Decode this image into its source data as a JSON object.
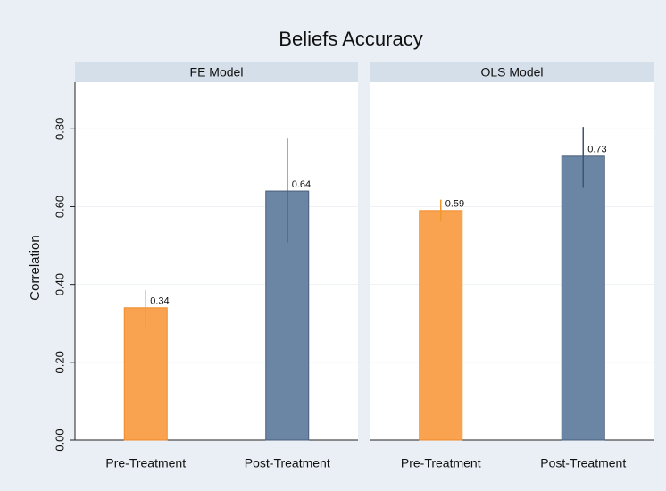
{
  "title": "Beliefs Accuracy",
  "ylabel": "Correlation",
  "chart_data": [
    {
      "type": "bar",
      "title": "FE Model",
      "categories": [
        "Pre-Treatment",
        "Post-Treatment"
      ],
      "values": [
        0.34,
        0.64
      ],
      "error_low": [
        0.287,
        0.508
      ],
      "error_high": [
        0.386,
        0.775
      ],
      "colors": [
        "#f9a350",
        "#6a86a4"
      ],
      "error_colors": [
        "#f09a2c",
        "#3c5573"
      ],
      "ylim": [
        0,
        0.92
      ],
      "yticks": [
        {
          "value": 0,
          "label": "0.00"
        },
        {
          "value": 0.2,
          "label": "0.20"
        },
        {
          "value": 0.4,
          "label": "0.40"
        },
        {
          "value": 0.6,
          "label": "0.60"
        },
        {
          "value": 0.8,
          "label": "0.80"
        }
      ],
      "grid": true
    },
    {
      "type": "bar",
      "title": "OLS Model",
      "categories": [
        "Pre-Treatment",
        "Post-Treatment"
      ],
      "values": [
        0.59,
        0.73
      ],
      "error_low": [
        0.563,
        0.648
      ],
      "error_high": [
        0.618,
        0.805
      ],
      "colors": [
        "#f9a350",
        "#6a86a4"
      ],
      "error_colors": [
        "#f09a2c",
        "#3c5573"
      ],
      "ylim": [
        0,
        0.92
      ],
      "grid": true
    }
  ]
}
